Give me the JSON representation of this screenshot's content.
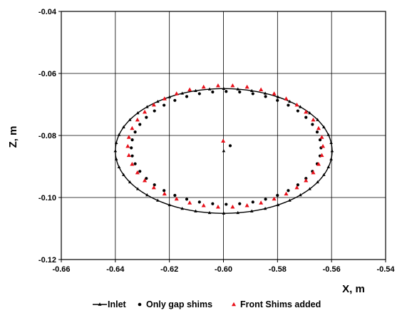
{
  "chart_data": {
    "type": "scatter",
    "xlabel": "X, m",
    "ylabel": "Z, m",
    "xlim": [
      -0.66,
      -0.54
    ],
    "ylim": [
      -0.12,
      -0.04
    ],
    "x_ticks": [
      "-0.66",
      "-0.64",
      "-0.62",
      "-0.60",
      "-0.58",
      "-0.56",
      "-0.54"
    ],
    "y_ticks": [
      "-0.12",
      "-0.10",
      "-0.08",
      "-0.06",
      "-0.04"
    ],
    "x_tick_values": [
      -0.66,
      -0.64,
      -0.62,
      -0.6,
      -0.58,
      -0.56,
      -0.54
    ],
    "y_tick_values": [
      -0.12,
      -0.1,
      -0.08,
      -0.06,
      -0.04
    ],
    "grid": true,
    "legend_position": "bottom",
    "series": [
      {
        "name": "Inlet",
        "marker": "triangle-line",
        "color": "#000000",
        "ellipse": {
          "cx": -0.5999,
          "cz": -0.085,
          "rx": 0.0401,
          "rz": 0.0201,
          "n_markers": 48
        },
        "center": {
          "x": -0.5999,
          "z": -0.085
        }
      },
      {
        "name": "Only gap shims",
        "marker": "dot",
        "color": "#000000",
        "ellipse": {
          "cx": -0.599,
          "cz": -0.084,
          "rx": 0.0351,
          "rz": 0.0182,
          "n_markers": 44
        },
        "center": {
          "x": -0.5975,
          "z": -0.0833
        }
      },
      {
        "name": "Front Shims added",
        "marker": "triangle",
        "color": "#e8101a",
        "ellipse": {
          "cx": -0.5993,
          "cz": -0.0835,
          "rx": 0.0361,
          "rz": 0.0196,
          "n_markers": 42
        },
        "center": {
          "x": -0.6001,
          "z": -0.0818
        }
      }
    ]
  }
}
